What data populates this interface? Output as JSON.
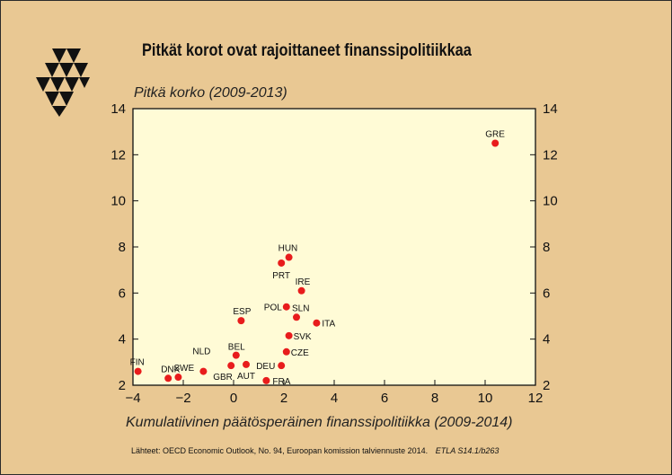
{
  "title": "Pitkät korot ovat rajoittaneet finanssipolitiikkaa",
  "source_text": "Lähteet:   OECD Economic Outlook, No. 94, Euroopan komission talviennuste 2014.",
  "source_ref": "ETLA S14.1/b263",
  "logo_icon": "etla-triangles-logo-icon",
  "chart_data": {
    "type": "scatter",
    "title": "Pitkät korot ovat rajoittaneet finanssipolitiikkaa",
    "xlabel": "Kumulatiivinen päätösperäinen finanssipolitiikka (2009-2014)",
    "ylabel": "Pitkä korko (2009-2013)",
    "xlim": [
      -4,
      12
    ],
    "ylim": [
      2,
      14
    ],
    "xticks": [
      -4,
      -2,
      0,
      2,
      4,
      6,
      8,
      10,
      12
    ],
    "yticks": [
      2,
      4,
      6,
      8,
      10,
      12,
      14
    ],
    "x_tick_labels": [
      "−4",
      "−2",
      "0",
      "2",
      "4",
      "6",
      "8",
      "10",
      "12"
    ],
    "y_tick_labels": [
      "2",
      "4",
      "6",
      "8",
      "10",
      "12",
      "14"
    ],
    "y_axis_right": true,
    "grid": false,
    "plot_background": "#FFFBD6",
    "point_color": "#E81C1C",
    "points": [
      {
        "label": "FIN",
        "x": -3.8,
        "y": 2.6
      },
      {
        "label": "DNK",
        "x": -2.6,
        "y": 2.3
      },
      {
        "label": "SWE",
        "x": -2.2,
        "y": 2.35
      },
      {
        "label": "NLD",
        "x": -1.2,
        "y": 2.6
      },
      {
        "label": "GBR",
        "x": -0.1,
        "y": 2.85
      },
      {
        "label": "BEL",
        "x": 0.1,
        "y": 3.3
      },
      {
        "label": "AUT",
        "x": 0.5,
        "y": 2.9
      },
      {
        "label": "FRA",
        "x": 1.3,
        "y": 2.2
      },
      {
        "label": "DEU",
        "x": 1.9,
        "y": 2.85
      },
      {
        "label": "ESP",
        "x": 0.3,
        "y": 4.8
      },
      {
        "label": "CZE",
        "x": 2.1,
        "y": 3.45
      },
      {
        "label": "SVK",
        "x": 2.2,
        "y": 4.15
      },
      {
        "label": "POL",
        "x": 2.1,
        "y": 5.4
      },
      {
        "label": "SLN",
        "x": 2.5,
        "y": 4.95
      },
      {
        "label": "ITA",
        "x": 3.3,
        "y": 4.7
      },
      {
        "label": "IRE",
        "x": 2.7,
        "y": 6.1
      },
      {
        "label": "PRT",
        "x": 1.9,
        "y": 7.3
      },
      {
        "label": "HUN",
        "x": 2.2,
        "y": 7.55
      },
      {
        "label": "GRE",
        "x": 10.4,
        "y": 12.5
      }
    ]
  }
}
